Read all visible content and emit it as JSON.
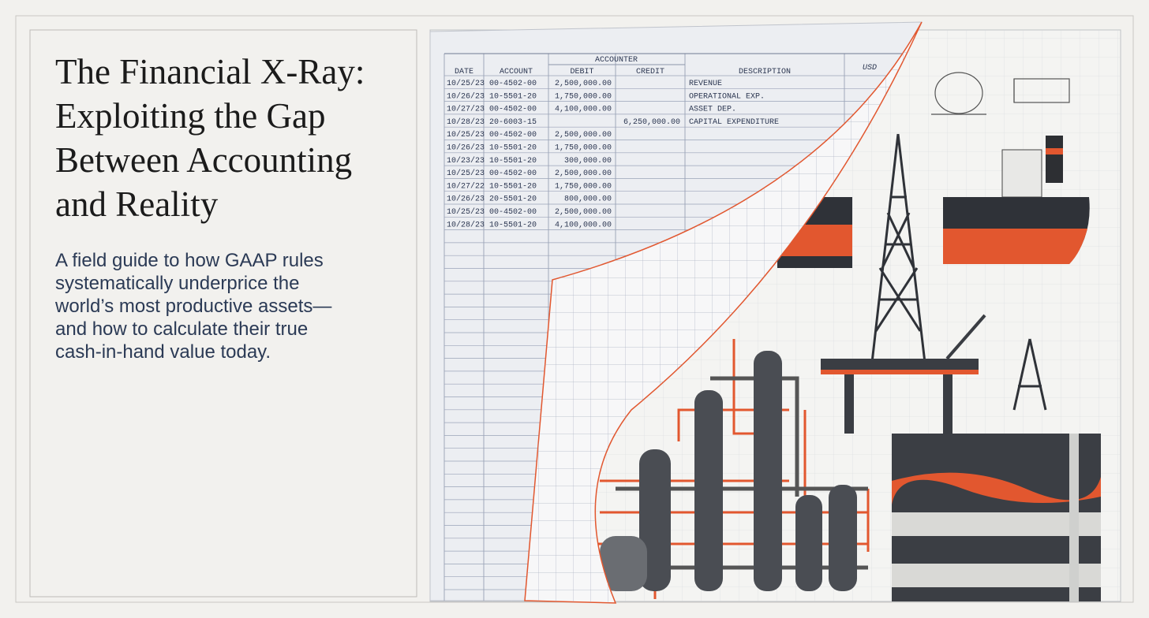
{
  "header": {
    "title_lines": [
      "The Financial X-Ray:",
      "Exploiting the Gap",
      "Between Accounting",
      "and Reality"
    ],
    "subtitle_lines": [
      "A field guide to how GAAP rules",
      "systematically underprice the",
      "world’s most productive assets—",
      "and how to calculate their true",
      "cash-in-hand value today."
    ]
  },
  "ledger": {
    "group_header": "ACCOUNTER",
    "currency": "USD",
    "columns": [
      "DATE",
      "ACCOUNT",
      "DEBIT",
      "CREDIT",
      "DESCRIPTION"
    ],
    "rows": [
      {
        "date": "10/25/23",
        "account": "00-4502-00",
        "debit": "2,500,000.00",
        "description": "REVENUE"
      },
      {
        "date": "10/26/23",
        "account": "10-5501-20",
        "debit": "1,750,000.00",
        "description": "OPERATIONAL EXP."
      },
      {
        "date": "10/27/23",
        "account": "00-4502-00",
        "debit": "4,100,000.00",
        "description": "ASSET DEP."
      },
      {
        "date": "10/28/23",
        "account": "20-6003-15",
        "credit": "6,250,000.00",
        "description": "CAPITAL EXPENDITURE"
      },
      {
        "date": "10/25/23",
        "account": "00-4502-00",
        "debit": "2,500,000.00"
      },
      {
        "date": "10/26/23",
        "account": "10-5501-20",
        "debit": "1,750,000.00"
      },
      {
        "date": "10/23/23",
        "account": "10-5501-20",
        "debit": "300,000.00"
      },
      {
        "date": "10/25/23",
        "account": "00-4502-00",
        "debit": "2,500,000.00"
      },
      {
        "date": "10/27/22",
        "account": "10-5501-20",
        "debit": "1,750,000.00"
      },
      {
        "date": "10/26/23",
        "account": "20-5501-20",
        "debit": "800,000.00"
      },
      {
        "date": "10/25/23",
        "account": "00-4502-00",
        "debit": "2,500,000.00"
      },
      {
        "date": "10/28/23",
        "account": "10-5501-20",
        "debit": "4,100,000.00"
      }
    ]
  }
}
